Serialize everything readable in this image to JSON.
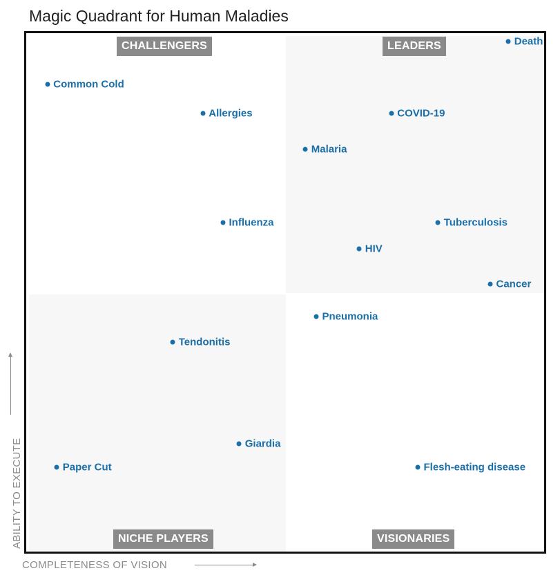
{
  "chart_data": {
    "type": "scatter",
    "title": "Magic Quadrant for Human Maladies",
    "xlabel": "COMPLETENESS OF VISION",
    "ylabel": "ABILITY TO EXECUTE",
    "xlim": [
      0,
      100
    ],
    "ylim": [
      0,
      100
    ],
    "grid": false,
    "quadrants": {
      "top_left": "CHALLENGERS",
      "top_right": "LEADERS",
      "bottom_left": "NICHE PLAYERS",
      "bottom_right": "VISIONARIES"
    },
    "point_color": "#1a6fa8",
    "points": [
      {
        "label": "Death",
        "x": 93.1,
        "y": 98.4
      },
      {
        "label": "Common Cold",
        "x": 4.1,
        "y": 90.1
      },
      {
        "label": "Allergies",
        "x": 34.1,
        "y": 84.5
      },
      {
        "label": "COVID-19",
        "x": 70.5,
        "y": 84.5
      },
      {
        "label": "Malaria",
        "x": 53.9,
        "y": 77.6
      },
      {
        "label": "Influenza",
        "x": 38.0,
        "y": 63.5
      },
      {
        "label": "Tuberculosis",
        "x": 79.5,
        "y": 63.5
      },
      {
        "label": "HIV",
        "x": 64.3,
        "y": 58.4
      },
      {
        "label": "Cancer",
        "x": 89.6,
        "y": 51.6
      },
      {
        "label": "Pneumonia",
        "x": 56.0,
        "y": 45.3
      },
      {
        "label": "Tendonitis",
        "x": 28.3,
        "y": 40.4
      },
      {
        "label": "Giardia",
        "x": 41.1,
        "y": 20.8
      },
      {
        "label": "Paper Cut",
        "x": 5.9,
        "y": 16.3
      },
      {
        "label": "Flesh-eating disease",
        "x": 75.6,
        "y": 16.3
      }
    ]
  }
}
